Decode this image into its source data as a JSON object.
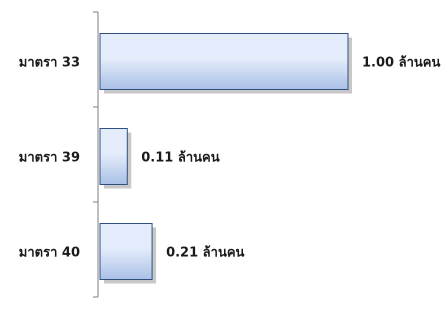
{
  "chart_data": {
    "type": "bar",
    "orientation": "horizontal",
    "categories": [
      "มาตรา 33",
      "มาตรา 39",
      "มาตรา 40"
    ],
    "values": [
      1.0,
      0.11,
      0.21
    ],
    "data_labels": [
      "1.00 ล้านคน",
      "0.11 ล้านคน",
      "0.21 ล้านคน"
    ],
    "unit": "ล้านคน",
    "xlim": [
      0,
      1.0
    ],
    "title": "",
    "xlabel": "",
    "ylabel": "",
    "grid": false,
    "legend": "none",
    "colors": {
      "bar_fill_light": "#e4ecfb",
      "bar_fill_dark": "#a9c0e6",
      "bar_stroke": "#2f4f7f",
      "bar_shadow": "#9a9a9a",
      "axis": "#7f7f7f"
    }
  }
}
